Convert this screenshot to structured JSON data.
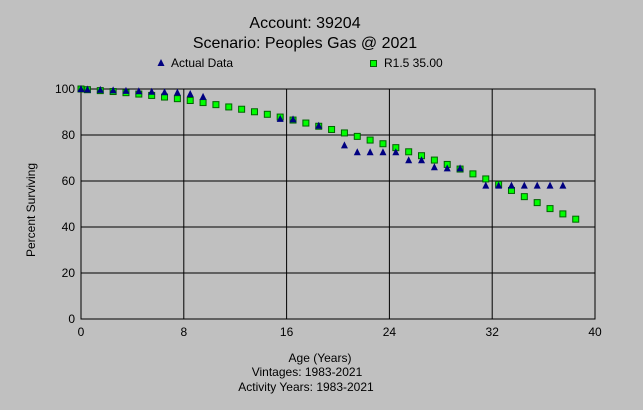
{
  "chart_data": {
    "type": "scatter",
    "title_lines": [
      "Account: 39204",
      "Scenario: Peoples Gas @ 2021"
    ],
    "xlabel": "Age (Years)",
    "ylabel": "Percent Surviving",
    "footer_lines": [
      "Vintages: 1983-2021",
      "Activity Years: 1983-2021"
    ],
    "xlim": [
      0,
      40
    ],
    "ylim": [
      0,
      100
    ],
    "x_ticks": [
      0,
      8,
      16,
      24,
      32,
      40
    ],
    "y_ticks": [
      0,
      20,
      40,
      60,
      80,
      100
    ],
    "grid": true,
    "legend_position": "top",
    "colors": {
      "background": "#c0c0c0",
      "actual": "#000080",
      "curve_fill": "#00ff00",
      "curve_stroke": "#006400",
      "grid": "#000000"
    },
    "series": [
      {
        "name": "Actual Data",
        "marker": "triangle",
        "x": [
          0,
          0.5,
          1.5,
          2.5,
          3.5,
          4.5,
          5.5,
          6.5,
          7.5,
          8.5,
          9.5,
          15.5,
          16.5,
          18.5,
          20.5,
          21.5,
          22.5,
          23.5,
          24.5,
          25.5,
          26.5,
          27.5,
          28.5,
          29.5,
          31.5,
          32.5,
          33.5,
          34.5,
          35.5,
          36.5,
          37.5
        ],
        "y": [
          100,
          99.8,
          99.6,
          99.4,
          99.2,
          99,
          98.8,
          98.6,
          98.4,
          97.8,
          96.6,
          87,
          86.8,
          84,
          75.5,
          72.5,
          72.5,
          72.5,
          72.5,
          69,
          69,
          66,
          65.5,
          65.5,
          58,
          58,
          58,
          58,
          58,
          58,
          58
        ]
      },
      {
        "name": "R1.5 35.00",
        "marker": "square",
        "x": [
          0,
          0.5,
          1.5,
          2.5,
          3.5,
          4.5,
          5.5,
          6.5,
          7.5,
          8.5,
          9.5,
          10.5,
          11.5,
          12.5,
          13.5,
          14.5,
          15.5,
          16.5,
          17.5,
          18.5,
          19.5,
          20.5,
          21.5,
          22.5,
          23.5,
          24.5,
          25.5,
          26.5,
          27.5,
          28.5,
          29.5,
          30.5,
          31.5,
          32.5,
          33.5,
          34.5,
          35.5,
          36.5,
          37.5,
          38.5
        ],
        "y": [
          100,
          99.7,
          99.3,
          98.9,
          98.4,
          97.8,
          97.2,
          96.5,
          95.8,
          95,
          94.1,
          93.2,
          92.2,
          91.2,
          90.1,
          89,
          87.8,
          86.5,
          85.2,
          83.8,
          82.4,
          80.9,
          79.4,
          77.8,
          76.2,
          74.5,
          72.7,
          71,
          69.1,
          67.2,
          65.2,
          63.1,
          60.9,
          58.5,
          55.9,
          53.2,
          50.6,
          48,
          45.7,
          43.4
        ]
      }
    ]
  }
}
